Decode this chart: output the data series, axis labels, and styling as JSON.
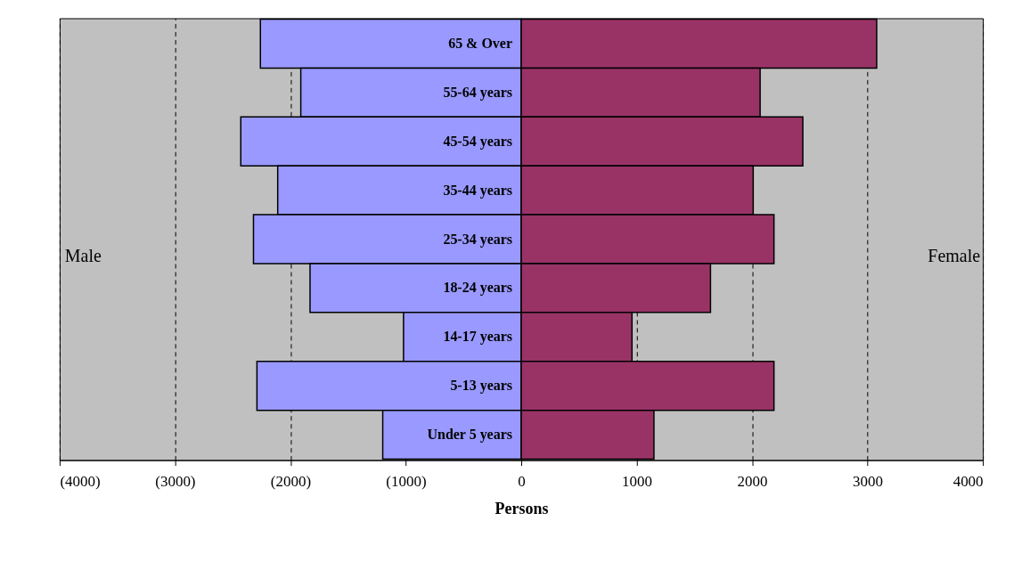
{
  "chart_data": {
    "type": "bar",
    "orientation": "horizontal",
    "stacked": true,
    "xlabel": "Persons",
    "categories": [
      "65 & Over",
      "55-64 years",
      "45-54 years",
      "35-44 years",
      "25-34 years",
      "18-24 years",
      "14-17 years",
      "5-13 years",
      "Under 5 years"
    ],
    "series": [
      {
        "color": "#9999ff",
        "values": [
          -2260,
          -1910,
          -2430,
          -2110,
          -2320,
          -1830,
          -1020,
          -2290,
          -1200
        ]
      },
      {
        "color": "#993366",
        "values": [
          3080,
          2070,
          2440,
          2010,
          2190,
          1640,
          960,
          2190,
          1150
        ]
      }
    ],
    "xlim": [
      -4000,
      4000
    ],
    "xticks": [
      {
        "value": -4000,
        "label": "(4000)"
      },
      {
        "value": -3000,
        "label": "(3000)"
      },
      {
        "value": -2000,
        "label": "(2000)"
      },
      {
        "value": -1000,
        "label": "(1000)"
      },
      0,
      1000,
      2000,
      3000,
      4000
    ],
    "annotations": [
      "Male",
      "Female"
    ],
    "grid": "x",
    "legend": false
  }
}
